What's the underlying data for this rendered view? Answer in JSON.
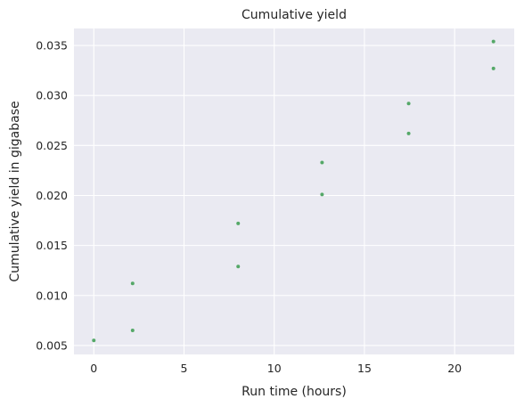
{
  "chart_data": {
    "type": "scatter",
    "title": "Cumulative yield",
    "xlabel": "Run time (hours)",
    "ylabel": "Cumulative yield in gigabase",
    "xlim": [
      -1.1,
      23.3
    ],
    "ylim": [
      0.0041,
      0.0367
    ],
    "x_ticks": [
      0,
      5,
      10,
      15,
      20
    ],
    "y_ticks": [
      0.005,
      0.01,
      0.015,
      0.02,
      0.025,
      0.03,
      0.035
    ],
    "x_tick_labels": [
      "0",
      "5",
      "10",
      "15",
      "20"
    ],
    "y_tick_labels": [
      "0.005",
      "0.010",
      "0.015",
      "0.020",
      "0.025",
      "0.030",
      "0.035"
    ],
    "grid": true,
    "background_color": "#eaeaf2",
    "point_color": "#55a868",
    "points": [
      {
        "x": 0.0,
        "y": 0.0055
      },
      {
        "x": 2.15,
        "y": 0.0065
      },
      {
        "x": 2.15,
        "y": 0.0112
      },
      {
        "x": 8.0,
        "y": 0.0129
      },
      {
        "x": 8.0,
        "y": 0.0172
      },
      {
        "x": 12.65,
        "y": 0.0201
      },
      {
        "x": 12.65,
        "y": 0.0233
      },
      {
        "x": 17.45,
        "y": 0.0262
      },
      {
        "x": 17.45,
        "y": 0.0292
      },
      {
        "x": 22.15,
        "y": 0.0327
      },
      {
        "x": 22.15,
        "y": 0.0354
      }
    ]
  }
}
